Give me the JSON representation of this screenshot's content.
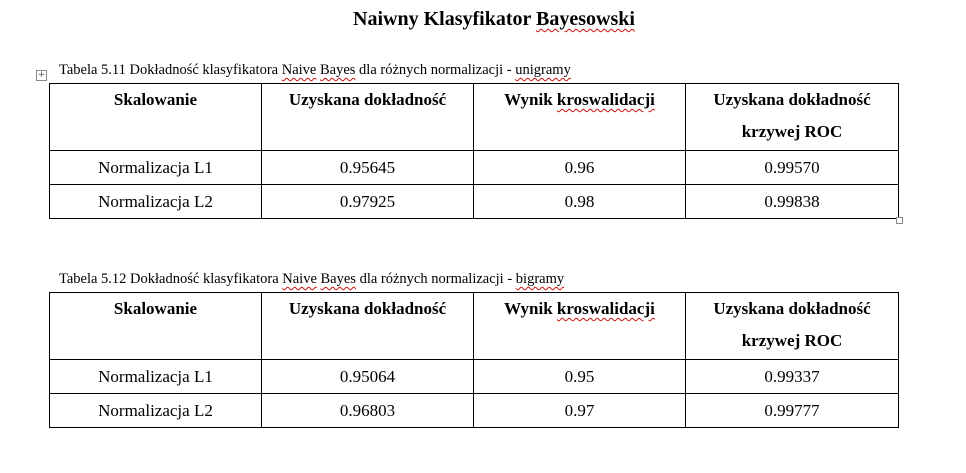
{
  "title": {
    "prefix": "Naiwny Klasyfikator ",
    "underlined": "Bayesowski"
  },
  "tables": [
    {
      "caption": {
        "part1": "Tabela 5.11 Dokładność klasyfikatora ",
        "naive": "Naive",
        "space": " ",
        "bayes": "Bayes",
        "part2": " dla różnych normalizacji - ",
        "ngram": "unigramy"
      },
      "headers": {
        "scaling": "Skalowanie",
        "accuracy": "Uzyskana dokładność",
        "cv_word1": "Wynik ",
        "cv_word2": "kroswalidacji",
        "roc_line1": "Uzyskana dokładność",
        "roc_line2": "krzywej ROC"
      },
      "rows": [
        {
          "scaling": "Normalizacja L1",
          "accuracy": "0.95645",
          "cv": "0.96",
          "roc": "0.99570"
        },
        {
          "scaling": "Normalizacja L2",
          "accuracy": "0.97925",
          "cv": "0.98",
          "roc": "0.99838"
        }
      ]
    },
    {
      "caption": {
        "part1": "Tabela 5.12 Dokładność klasyfikatora ",
        "naive": "Naive",
        "space": " ",
        "bayes": "Bayes",
        "part2": " dla różnych normalizacji - ",
        "ngram": "bigramy"
      },
      "headers": {
        "scaling": "Skalowanie",
        "accuracy": "Uzyskana dokładność",
        "cv_word1": "Wynik ",
        "cv_word2": "kroswalidacji",
        "roc_line1": "Uzyskana dokładność",
        "roc_line2": "krzywej ROC"
      },
      "rows": [
        {
          "scaling": "Normalizacja L1",
          "accuracy": "0.95064",
          "cv": "0.95",
          "roc": "0.99337"
        },
        {
          "scaling": "Normalizacja L2",
          "accuracy": "0.96803",
          "cv": "0.97",
          "roc": "0.99777"
        }
      ]
    }
  ],
  "icons": {
    "move_handle": "table-move-handle-icon",
    "resize_handle": "table-resize-handle-icon",
    "move_glyph": "+"
  }
}
